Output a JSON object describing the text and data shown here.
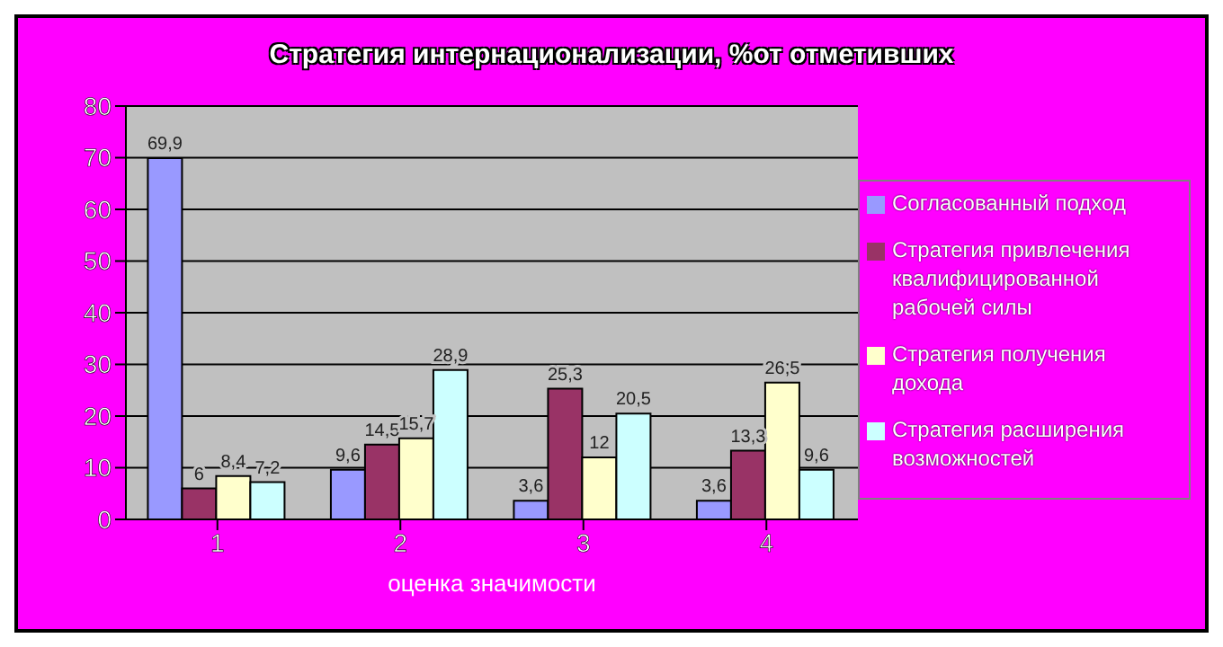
{
  "chart_data": {
    "type": "bar",
    "title": "Стратегия интернационализации, %от отметивших",
    "xlabel": "оценка значимости",
    "categories": [
      "1",
      "2",
      "3",
      "4"
    ],
    "series": [
      {
        "name": "Согласованный подход",
        "color": "#9999ff",
        "values": [
          69.9,
          9.6,
          3.6,
          3.6
        ],
        "value_labels": [
          "69,9",
          "9,6",
          "3,6",
          "3,6"
        ]
      },
      {
        "name": "Стратегия привлечения квалифицированной рабочей силы",
        "color": "#993366",
        "values": [
          6,
          14.5,
          25.3,
          13.3
        ],
        "value_labels": [
          "6",
          "14,5",
          "25,3",
          "13,3"
        ]
      },
      {
        "name": "Стратегия получения дохода",
        "color": "#ffffcc",
        "values": [
          8.4,
          15.7,
          12,
          26.5
        ],
        "value_labels": [
          "8,4",
          "15,7",
          "12",
          "26,5"
        ]
      },
      {
        "name": "Стратегия расширения возможностей",
        "color": "#ccffff",
        "values": [
          7.2,
          28.9,
          20.5,
          9.6
        ],
        "value_labels": [
          "7,2",
          "28,9",
          "20,5",
          "9,6"
        ]
      }
    ],
    "ylim": [
      0,
      80
    ],
    "yticks": [
      0,
      10,
      20,
      30,
      40,
      50,
      60,
      70,
      80
    ],
    "grid": "y",
    "legend": "right"
  }
}
